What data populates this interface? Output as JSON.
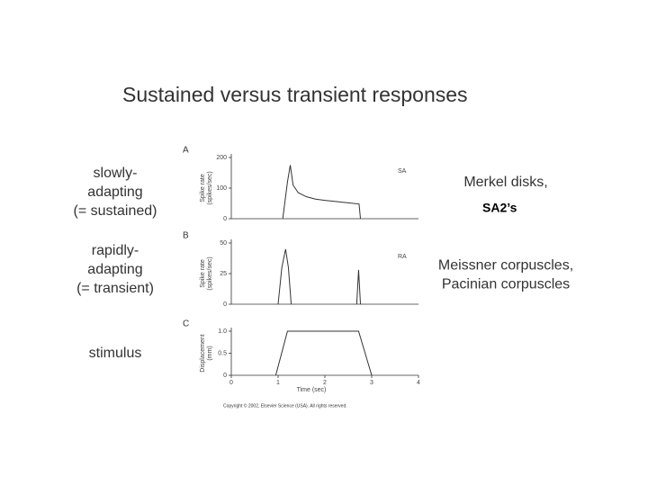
{
  "slide": {
    "title": "Sustained versus transient responses",
    "left_labels": [
      [
        "slowly-",
        "adapting",
        "(= sustained)"
      ],
      [
        "rapidly-",
        "adapting",
        "(= transient)"
      ],
      [
        "stimulus"
      ]
    ],
    "right_labels": [
      [
        "Merkel disks,"
      ],
      [
        "Meissner corpuscles,",
        "Pacinian corpuscles"
      ]
    ],
    "note": "SA2’s",
    "copyright": "Copyright © 2002, Elsevier Science (USA). All rights reserved."
  },
  "chart_data": [
    {
      "type": "line",
      "panel_label": "A",
      "annotation": "SA",
      "ylabel": [
        "Spike rate",
        "(spikes/sec)"
      ],
      "x": [
        1.1,
        1.2,
        1.26,
        1.32,
        1.43,
        1.6,
        1.8,
        2.0,
        2.3,
        2.5,
        2.73,
        2.76
      ],
      "values": [
        0,
        120,
        175,
        110,
        85,
        72,
        64,
        60,
        55,
        52,
        48,
        0
      ],
      "xlim": [
        0,
        4
      ],
      "ylim": [
        0,
        200
      ],
      "yticks": [
        0,
        100,
        200
      ],
      "color": "#333333"
    },
    {
      "type": "line",
      "panel_label": "B",
      "annotation": "RA",
      "ylabel": [
        "Spike rate",
        "(spikes/sec)"
      ],
      "x": [
        1.0,
        1.08,
        1.16,
        1.22,
        1.28,
        2.0,
        2.68,
        2.72,
        2.76
      ],
      "values": [
        0,
        30,
        45,
        30,
        0,
        null,
        0,
        28,
        0
      ],
      "xlim": [
        0,
        4
      ],
      "ylim": [
        0,
        50
      ],
      "yticks": [
        0,
        25,
        50
      ],
      "color": "#333333"
    },
    {
      "type": "line",
      "panel_label": "C",
      "ylabel": [
        "Displacement",
        "(mm)"
      ],
      "xlabel": "Time (sec)",
      "x": [
        0.95,
        1.2,
        2.72,
        3.0
      ],
      "values": [
        0,
        1,
        1,
        0
      ],
      "xlim": [
        0,
        4
      ],
      "ylim": [
        0,
        1
      ],
      "xticks": [
        0,
        1,
        2,
        3,
        4
      ],
      "yticks": [
        0,
        0.5,
        {
          "value": 1,
          "label": "1.0"
        }
      ],
      "color": "#333333"
    }
  ]
}
